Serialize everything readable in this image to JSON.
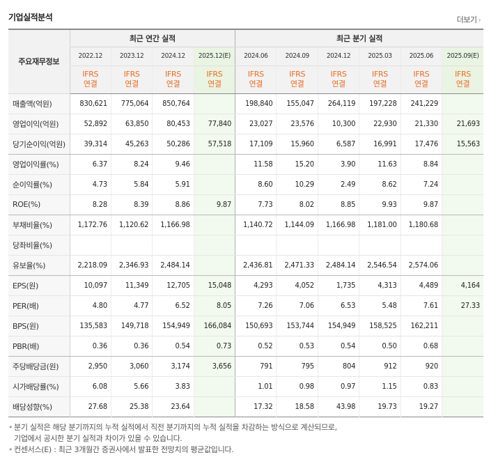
{
  "header": {
    "title": "기업실적분석",
    "more_label": "더보기",
    "more_arrow": "›"
  },
  "table": {
    "row_header_label": "주요재무정보",
    "groups": [
      "최근 연간 실적",
      "최근 분기 실적"
    ],
    "periods": [
      "2022.12",
      "2023.12",
      "2024.12",
      "2025.12(E)",
      "2024.06",
      "2024.09",
      "2024.12",
      "2025.03",
      "2025.06",
      "2025.09(E)"
    ],
    "standards": [
      "IFRS\n연결",
      "IFRS\n연결",
      "IFRS\n연결",
      "IFRS\n연결",
      "IFRS\n연결",
      "IFRS\n연결",
      "IFRS\n연결",
      "IFRS\n연결",
      "IFRS\n연결",
      "IFRS\n연결"
    ],
    "estimate_columns": [
      3,
      9
    ],
    "rows": [
      {
        "label": "매출액(억원)",
        "values": [
          "830,621",
          "775,064",
          "850,764",
          "",
          "198,840",
          "155,047",
          "264,119",
          "197,228",
          "241,229",
          ""
        ]
      },
      {
        "label": "영업이익(억원)",
        "values": [
          "52,892",
          "63,850",
          "80,453",
          "77,840",
          "23,027",
          "23,576",
          "10,300",
          "22,930",
          "21,330",
          "21,693"
        ]
      },
      {
        "label": "당기순이익(억원)",
        "values": [
          "39,314",
          "45,263",
          "50,286",
          "57,518",
          "17,109",
          "15,960",
          "6,587",
          "16,991",
          "17,476",
          "15,563"
        ]
      },
      {
        "label": "영업이익률(%)",
        "values": [
          "6.37",
          "8.24",
          "9.46",
          "",
          "11.58",
          "15.20",
          "3.90",
          "11.63",
          "8.84",
          ""
        ]
      },
      {
        "label": "순이익률(%)",
        "values": [
          "4.73",
          "5.84",
          "5.91",
          "",
          "8.60",
          "10.29",
          "2.49",
          "8.62",
          "7.24",
          ""
        ]
      },
      {
        "label": "ROE(%)",
        "values": [
          "8.28",
          "8.39",
          "8.86",
          "9.87",
          "7.73",
          "8.02",
          "8.85",
          "9.93",
          "9.87",
          ""
        ]
      },
      {
        "label": "부채비율(%)",
        "values": [
          "1,172.76",
          "1,120.62",
          "1,166.98",
          "",
          "1,140.72",
          "1,144.09",
          "1,166.98",
          "1,181.00",
          "1,180.68",
          ""
        ]
      },
      {
        "label": "당좌비율(%)",
        "values": [
          "",
          "",
          "",
          "",
          "",
          "",
          "",
          "",
          "",
          ""
        ]
      },
      {
        "label": "유보율(%)",
        "values": [
          "2,218.09",
          "2,346.93",
          "2,484.14",
          "",
          "2,436.81",
          "2,471.33",
          "2,484.14",
          "2,546.54",
          "2,574.06",
          ""
        ]
      },
      {
        "label": "EPS(원)",
        "values": [
          "10,097",
          "11,349",
          "12,705",
          "15,048",
          "4,293",
          "4,052",
          "1,735",
          "4,313",
          "4,489",
          "4,164"
        ]
      },
      {
        "label": "PER(배)",
        "values": [
          "4.80",
          "4.77",
          "6.52",
          "8.05",
          "7.26",
          "7.06",
          "6.53",
          "5.48",
          "7.61",
          "27.33"
        ]
      },
      {
        "label": "BPS(원)",
        "values": [
          "135,583",
          "149,718",
          "154,949",
          "166,084",
          "150,693",
          "153,744",
          "154,949",
          "158,525",
          "162,211",
          ""
        ]
      },
      {
        "label": "PBR(배)",
        "values": [
          "0.36",
          "0.36",
          "0.54",
          "0.73",
          "0.52",
          "0.53",
          "0.54",
          "0.50",
          "0.68",
          ""
        ]
      },
      {
        "label": "주당배당금(원)",
        "values": [
          "2,950",
          "3,060",
          "3,174",
          "3,656",
          "791",
          "795",
          "804",
          "912",
          "920",
          ""
        ]
      },
      {
        "label": "시가배당률(%)",
        "values": [
          "6.08",
          "5.66",
          "3.83",
          "",
          "1.01",
          "0.98",
          "0.97",
          "1.15",
          "0.83",
          ""
        ]
      },
      {
        "label": "배당성향(%)",
        "values": [
          "27.68",
          "25.38",
          "23.64",
          "",
          "17.32",
          "18.58",
          "43.98",
          "19.73",
          "19.27",
          ""
        ]
      }
    ],
    "group_end_rows": [
      2,
      5,
      8,
      12
    ]
  },
  "notes": {
    "bullet": "•",
    "line1": "분기 실적은 해당 분기까지의 누적 실적에서 직전 분기까지의 누적 실적을 차감하는 방식으로 계산되므로,",
    "line2": "기업에서 공시한 분기 실적과 차이가 있을 수 있습니다.",
    "line3": "컨센서스(E) : 최근 3개월간 증권사에서 발표한 전망치의 평균값입니다."
  },
  "colors": {
    "ifrs_orange": "#ef6b1f",
    "estimate_green_bg": "#f2f9ee",
    "header_gray": "#f2f2f2"
  }
}
